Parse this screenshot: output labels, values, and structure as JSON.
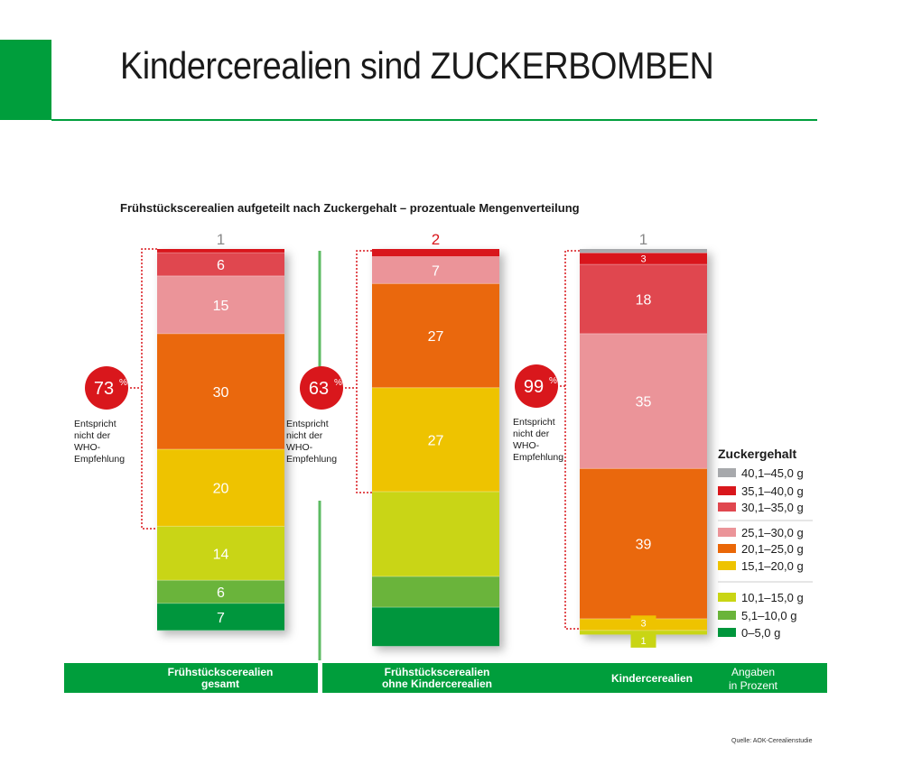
{
  "title": "Kindercerealien sind ZUCKERBOMBEN",
  "source": "Quelle: AOK-Cerealienstudie",
  "chart_data": {
    "type": "bar",
    "stacked": true,
    "title": "Frühstückscerealien aufgeteilt nach Zuckergehalt – prozentuale Mengenverteilung",
    "unit_note": [
      "Angaben",
      "in Prozent"
    ],
    "legend_title": "Zuckergehalt",
    "legend_placement": "right",
    "categories": [
      [
        "Frühstückscerealien",
        "gesamt"
      ],
      [
        "Frühstückscerealien",
        "ohne Kindercerealien"
      ],
      [
        "Kindercerealien"
      ]
    ],
    "series": [
      {
        "name": "40,1–45,0 g",
        "color": "#a7a9ac",
        "values": [
          0,
          0,
          1
        ],
        "labels": [
          "",
          "",
          ""
        ]
      },
      {
        "name": "35,1–40,0 g",
        "color": "#d9171c",
        "values": [
          1,
          2,
          3
        ],
        "labels": [
          "",
          "",
          "3"
        ]
      },
      {
        "name": "30,1–35,0 g",
        "color": "#e0474f",
        "values": [
          6,
          0,
          18
        ],
        "labels": [
          "6",
          "",
          "18"
        ]
      },
      {
        "name": "25,1–30,0 g",
        "color": "#eb9499",
        "values": [
          15,
          7,
          35
        ],
        "labels": [
          "15",
          "7",
          "35"
        ]
      },
      {
        "name": "20,1–25,0 g",
        "color": "#ea6707",
        "values": [
          30,
          27,
          39
        ],
        "labels": [
          "30",
          "27",
          "39"
        ]
      },
      {
        "name": "15,1–20,0 g",
        "color": "#eec300",
        "values": [
          20,
          27,
          3
        ],
        "labels": [
          "20",
          "27",
          "3"
        ]
      },
      {
        "name": "10,1–15,0 g",
        "color": "#c9d514",
        "values": [
          14,
          22,
          1
        ],
        "labels": [
          "14",
          "",
          "1"
        ]
      },
      {
        "name": "5,1–10,0 g",
        "color": "#6ab43a",
        "values": [
          6,
          8,
          0
        ],
        "labels": [
          "6",
          "",
          ""
        ]
      },
      {
        "name": "0–5,0 g",
        "color": "#00963c",
        "values": [
          7,
          10,
          0
        ],
        "labels": [
          "7",
          "",
          ""
        ]
      }
    ],
    "top_labels": [
      "1",
      "2",
      "1"
    ],
    "top_label_colors": [
      "#888888",
      "#d9171c",
      "#888888"
    ],
    "who_share": [
      "73",
      "63",
      "99"
    ],
    "who_note": [
      "Entspricht",
      "nicht der",
      "WHO-",
      "Empfehlung"
    ]
  }
}
